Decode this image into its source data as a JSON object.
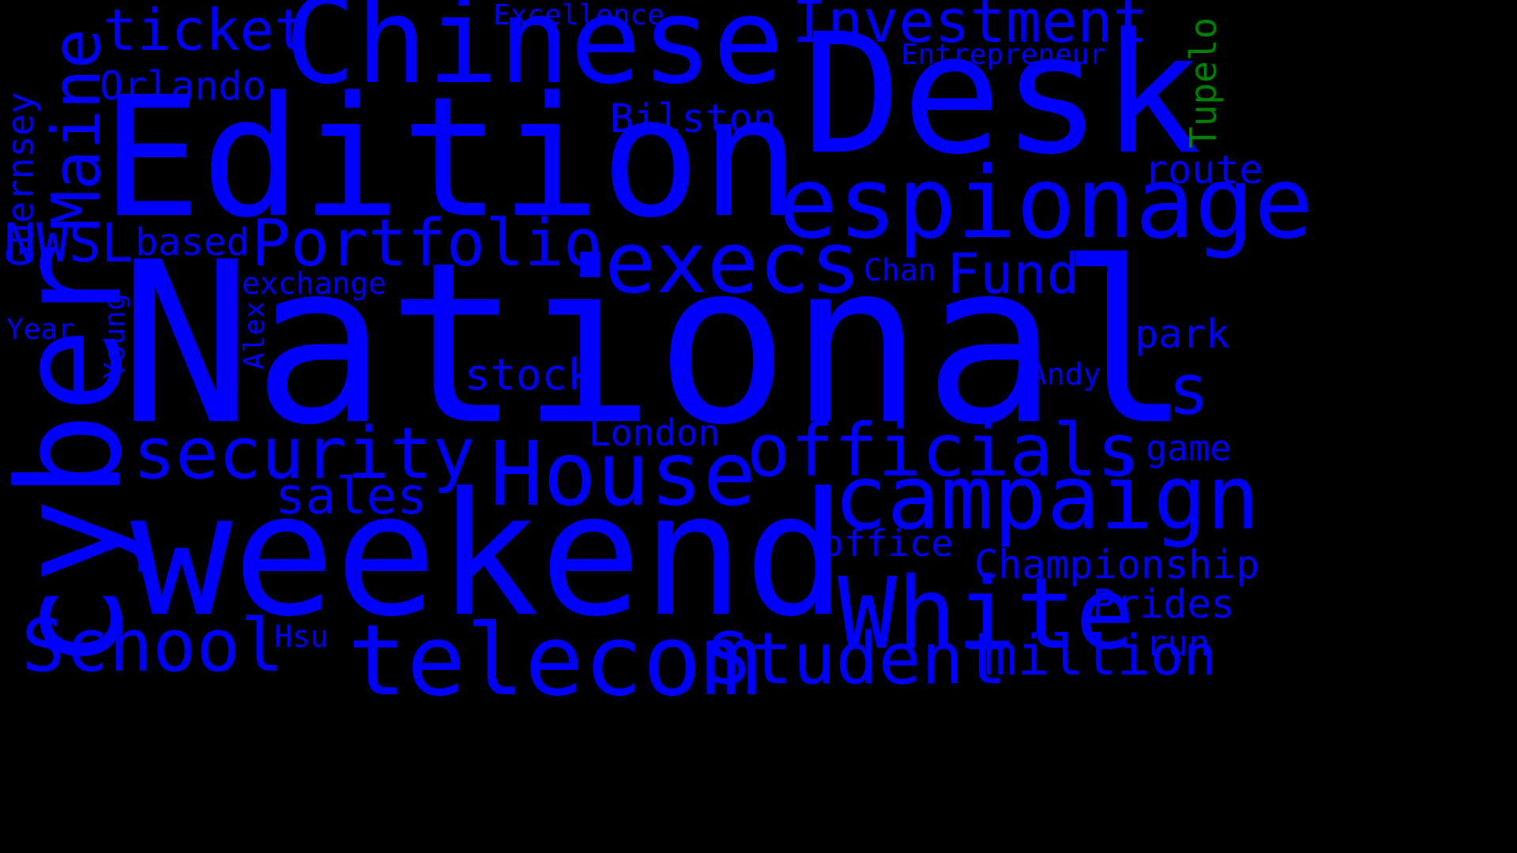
{
  "colors": {
    "background": "#000000",
    "primary": "#0000ff",
    "accent": "#008000"
  },
  "words": [
    {
      "key": "national",
      "text": "National",
      "color": "#0000ff",
      "orientation": "horizontal"
    },
    {
      "key": "weekend",
      "text": "weekend",
      "color": "#0000ff",
      "orientation": "horizontal"
    },
    {
      "key": "edition",
      "text": "Edition",
      "color": "#0000ff",
      "orientation": "horizontal"
    },
    {
      "key": "desk",
      "text": "Desk",
      "color": "#0000ff",
      "orientation": "horizontal"
    },
    {
      "key": "chinese",
      "text": "Chinese",
      "color": "#0000ff",
      "orientation": "horizontal"
    },
    {
      "key": "cyber",
      "text": "cyber",
      "color": "#0000ff",
      "orientation": "vertical"
    },
    {
      "key": "espionage",
      "text": "espionage",
      "color": "#0000ff",
      "orientation": "horizontal"
    },
    {
      "key": "telecom",
      "text": "telecom",
      "color": "#0000ff",
      "orientation": "horizontal"
    },
    {
      "key": "white",
      "text": "White",
      "color": "#0000ff",
      "orientation": "horizontal"
    },
    {
      "key": "campaign",
      "text": "campaign",
      "color": "#0000ff",
      "orientation": "horizontal"
    },
    {
      "key": "house",
      "text": "House",
      "color": "#0000ff",
      "orientation": "horizontal"
    },
    {
      "key": "execs",
      "text": "execs",
      "color": "#0000ff",
      "orientation": "horizontal"
    },
    {
      "key": "officials",
      "text": "officials",
      "color": "#0000ff",
      "orientation": "horizontal"
    },
    {
      "key": "student",
      "text": "Student",
      "color": "#0000ff",
      "orientation": "horizontal"
    },
    {
      "key": "security",
      "text": "security",
      "color": "#0000ff",
      "orientation": "horizontal"
    },
    {
      "key": "school",
      "text": "School",
      "color": "#0000ff",
      "orientation": "horizontal"
    },
    {
      "key": "portfolio",
      "text": "Portfolio",
      "color": "#0000ff",
      "orientation": "horizontal"
    },
    {
      "key": "investment",
      "text": "Investment",
      "color": "#0000ff",
      "orientation": "horizontal"
    },
    {
      "key": "maine",
      "text": "Maine",
      "color": "#0000ff",
      "orientation": "vertical"
    },
    {
      "key": "million",
      "text": "million",
      "color": "#0000ff",
      "orientation": "horizontal"
    },
    {
      "key": "ticket",
      "text": "ticket",
      "color": "#0000ff",
      "orientation": "horizontal"
    },
    {
      "key": "fund",
      "text": "Fund",
      "color": "#0000ff",
      "orientation": "horizontal"
    },
    {
      "key": "nwsl",
      "text": "NWSL",
      "color": "#0000ff",
      "orientation": "horizontal"
    },
    {
      "key": "s",
      "text": "s",
      "color": "#0000ff",
      "orientation": "horizontal"
    },
    {
      "key": "sales",
      "text": "sales",
      "color": "#0000ff",
      "orientation": "horizontal"
    },
    {
      "key": "stock",
      "text": "stock",
      "color": "#0000ff",
      "orientation": "horizontal"
    },
    {
      "key": "orlando",
      "text": "Orlando",
      "color": "#0000ff",
      "orientation": "horizontal"
    },
    {
      "key": "bilston",
      "text": "Bilston",
      "color": "#0000ff",
      "orientation": "horizontal"
    },
    {
      "key": "based",
      "text": "based",
      "color": "#0000ff",
      "orientation": "horizontal"
    },
    {
      "key": "route",
      "text": "route",
      "color": "#0000ff",
      "orientation": "horizontal"
    },
    {
      "key": "park",
      "text": "park",
      "color": "#0000ff",
      "orientation": "horizontal"
    },
    {
      "key": "championship",
      "text": "Championship",
      "color": "#0000ff",
      "orientation": "horizontal"
    },
    {
      "key": "prides",
      "text": "Prides",
      "color": "#0000ff",
      "orientation": "horizontal"
    },
    {
      "key": "london",
      "text": "London",
      "color": "#0000ff",
      "orientation": "horizontal"
    },
    {
      "key": "office",
      "text": "office",
      "color": "#0000ff",
      "orientation": "horizontal"
    },
    {
      "key": "guernsey",
      "text": "Guernsey",
      "color": "#0000ff",
      "orientation": "vertical"
    },
    {
      "key": "tupelo",
      "text": "Tupelo",
      "color": "#008000",
      "orientation": "vertical"
    },
    {
      "key": "entrepreneur",
      "text": "Entrepreneur",
      "color": "#0000ff",
      "orientation": "horizontal"
    },
    {
      "key": "excellence",
      "text": "Excellence",
      "color": "#0000ff",
      "orientation": "horizontal"
    },
    {
      "key": "exchange",
      "text": "exchange",
      "color": "#0000ff",
      "orientation": "horizontal"
    },
    {
      "key": "chan",
      "text": "Chan",
      "color": "#0000ff",
      "orientation": "horizontal"
    },
    {
      "key": "andy",
      "text": "Andy",
      "color": "#0000ff",
      "orientation": "horizontal"
    },
    {
      "key": "game",
      "text": "game",
      "color": "#0000ff",
      "orientation": "horizontal"
    },
    {
      "key": "run",
      "text": "run",
      "color": "#0000ff",
      "orientation": "horizontal"
    },
    {
      "key": "hsu",
      "text": "Hsu",
      "color": "#0000ff",
      "orientation": "horizontal"
    },
    {
      "key": "year",
      "text": "Year",
      "color": "#0000ff",
      "orientation": "horizontal"
    },
    {
      "key": "young",
      "text": "Young",
      "color": "#0000ff",
      "orientation": "vertical"
    },
    {
      "key": "alex",
      "text": "Alex",
      "color": "#0000ff",
      "orientation": "vertical"
    }
  ]
}
